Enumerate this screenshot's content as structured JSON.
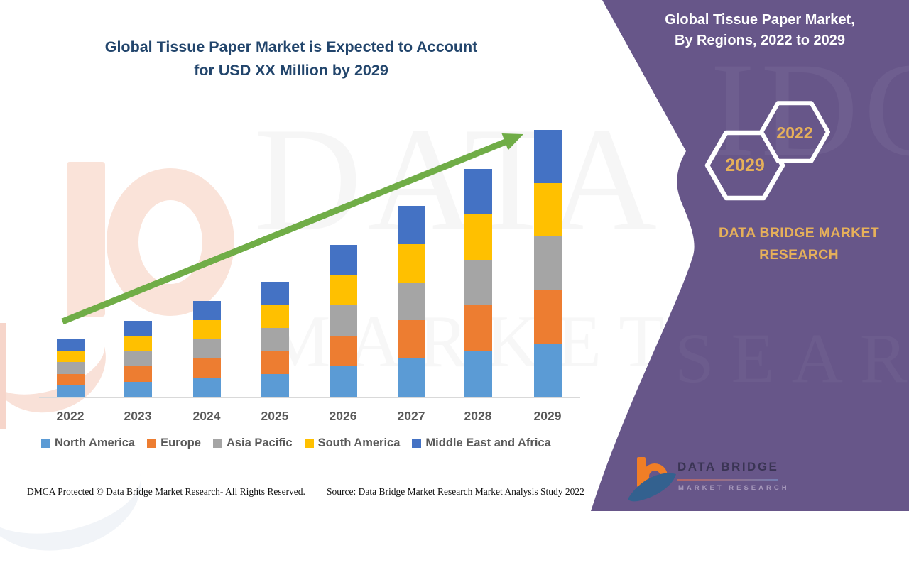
{
  "header": {
    "main_title_line1": "Global Tissue Paper Market is Expected to Account",
    "main_title_line2": "for USD XX Million by 2029"
  },
  "side_panel": {
    "title_line1": "Global Tissue Paper Market,",
    "title_line2": "By Regions, 2022 to 2029",
    "hexagon_back_label": "2029",
    "hexagon_front_label": "2022",
    "brand_text": "DATA BRIDGE MARKET RESEARCH",
    "logo": {
      "name": "DATA BRIDGE",
      "tagline": "MARKET RESEARCH"
    },
    "background_color": "#675689",
    "accent_gold": "#E6B05A"
  },
  "watermark": {
    "line1": "DATA BRIDGE",
    "line2": "MARKET RESEARCH"
  },
  "footer": {
    "dmca": "DMCA Protected © Data Bridge Market Research- All Rights Reserved.",
    "source": "Source: Data Bridge Market Research Market Analysis Study 2022"
  },
  "chart_data": {
    "type": "bar",
    "stacked": true,
    "title": "Global Tissue Paper Market is Expected to Account for USD XX Million by 2029",
    "categories": [
      "2022",
      "2023",
      "2024",
      "2025",
      "2026",
      "2027",
      "2028",
      "2029"
    ],
    "series": [
      {
        "name": "North America",
        "color": "#5B9BD5",
        "values": [
          4.3,
          5.7,
          7.2,
          8.6,
          11.4,
          14.3,
          17.1,
          20.0
        ]
      },
      {
        "name": "Europe",
        "color": "#ED7D31",
        "values": [
          4.3,
          5.7,
          7.2,
          8.6,
          11.4,
          14.3,
          17.1,
          20.0
        ]
      },
      {
        "name": "Asia Pacific",
        "color": "#A5A5A5",
        "values": [
          4.3,
          5.7,
          7.2,
          8.6,
          11.4,
          14.3,
          17.1,
          20.0
        ]
      },
      {
        "name": "South America",
        "color": "#FFC000",
        "values": [
          4.3,
          5.7,
          7.2,
          8.6,
          11.4,
          14.3,
          17.1,
          20.0
        ]
      },
      {
        "name": "Middle East and Africa",
        "color": "#4472C4",
        "values": [
          4.3,
          5.7,
          7.2,
          8.6,
          11.4,
          14.3,
          17.1,
          20.0
        ]
      }
    ],
    "bar_totals": [
      21.3,
      28.7,
      36.2,
      43.1,
      57.2,
      71.3,
      85.4,
      100
    ],
    "units": "indexed relative height, 2029 total = 100 (actual values unlabeled: USD XX Million)",
    "xlabel": "",
    "ylabel": "",
    "ylim": [
      0,
      105
    ],
    "grid": false,
    "legend_position": "bottom",
    "annotations": [
      "upward green trend arrow from 2022 to 2029"
    ]
  }
}
